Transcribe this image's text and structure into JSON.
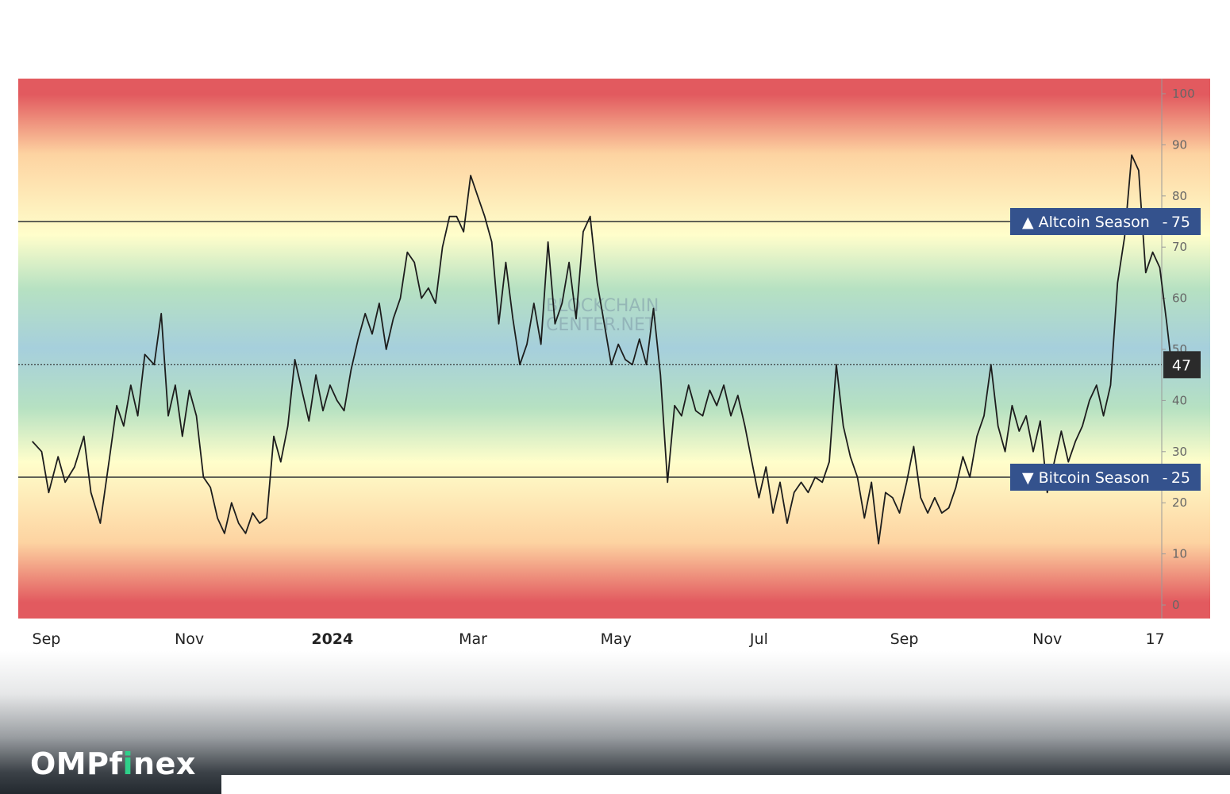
{
  "colors": {
    "red": "#e25a5f",
    "orange": "#fdd3a1",
    "yellow": "#fffecb",
    "green": "#b6e1c2",
    "blue": "#a6cfdc",
    "line": "#1d1d1d",
    "badge_blue": "#34528d",
    "badge_dark": "#2b2b2b"
  },
  "watermark": {
    "line1": "BLOCKCHAIN",
    "line2": "CENTER.NET"
  },
  "logo": {
    "part1": "OMP",
    "part2": "f",
    "part3": "i",
    "part4": "nex"
  },
  "chart_data": {
    "type": "line",
    "title": "",
    "xlabel": "",
    "ylabel": "",
    "ylim": [
      0,
      100
    ],
    "y_ticks": [
      "0",
      "10",
      "20",
      "30",
      "40",
      "50",
      "60",
      "70",
      "80",
      "90",
      "100"
    ],
    "x_ticks": [
      {
        "label": "Sep",
        "date": "2023-09-01",
        "bold": false
      },
      {
        "label": "Nov",
        "date": "2023-11-01",
        "bold": false
      },
      {
        "label": "2024",
        "date": "2024-01-01",
        "bold": true
      },
      {
        "label": "Mar",
        "date": "2024-03-01",
        "bold": false
      },
      {
        "label": "May",
        "date": "2024-05-01",
        "bold": false
      },
      {
        "label": "Jul",
        "date": "2024-07-01",
        "bold": false
      },
      {
        "label": "Sep",
        "date": "2024-09-01",
        "bold": false
      },
      {
        "label": "Nov",
        "date": "2024-11-01",
        "bold": false
      },
      {
        "label": "17",
        "date": "2024-12-17",
        "bold": false
      }
    ],
    "x_range": [
      "2023-08-20",
      "2024-12-30"
    ],
    "thresholds": [
      {
        "label": "▲ Altcoin Season",
        "value_label": "75",
        "value": 75
      },
      {
        "label": "▼ Bitcoin Season",
        "value_label": "25",
        "value": 25
      }
    ],
    "current": {
      "value": 47,
      "label": "47"
    },
    "grid": false,
    "series": [
      {
        "values": [
          [
            "2023-08-26",
            32
          ],
          [
            "2023-08-30",
            30
          ],
          [
            "2023-09-02",
            22
          ],
          [
            "2023-09-06",
            29
          ],
          [
            "2023-09-09",
            24
          ],
          [
            "2023-09-13",
            27
          ],
          [
            "2023-09-17",
            33
          ],
          [
            "2023-09-20",
            22
          ],
          [
            "2023-09-24",
            16
          ],
          [
            "2023-09-28",
            29
          ],
          [
            "2023-10-01",
            39
          ],
          [
            "2023-10-04",
            35
          ],
          [
            "2023-10-07",
            43
          ],
          [
            "2023-10-10",
            37
          ],
          [
            "2023-10-13",
            49
          ],
          [
            "2023-10-17",
            47
          ],
          [
            "2023-10-20",
            57
          ],
          [
            "2023-10-23",
            37
          ],
          [
            "2023-10-26",
            43
          ],
          [
            "2023-10-29",
            33
          ],
          [
            "2023-11-01",
            42
          ],
          [
            "2023-11-04",
            37
          ],
          [
            "2023-11-07",
            25
          ],
          [
            "2023-11-10",
            23
          ],
          [
            "2023-11-13",
            17
          ],
          [
            "2023-11-16",
            14
          ],
          [
            "2023-11-19",
            20
          ],
          [
            "2023-11-22",
            16
          ],
          [
            "2023-11-25",
            14
          ],
          [
            "2023-11-28",
            18
          ],
          [
            "2023-12-01",
            16
          ],
          [
            "2023-12-04",
            17
          ],
          [
            "2023-12-07",
            33
          ],
          [
            "2023-12-10",
            28
          ],
          [
            "2023-12-13",
            35
          ],
          [
            "2023-12-16",
            48
          ],
          [
            "2023-12-19",
            42
          ],
          [
            "2023-12-22",
            36
          ],
          [
            "2023-12-25",
            45
          ],
          [
            "2023-12-28",
            38
          ],
          [
            "2023-12-31",
            43
          ],
          [
            "2024-01-03",
            40
          ],
          [
            "2024-01-06",
            38
          ],
          [
            "2024-01-09",
            46
          ],
          [
            "2024-01-12",
            52
          ],
          [
            "2024-01-15",
            57
          ],
          [
            "2024-01-18",
            53
          ],
          [
            "2024-01-21",
            59
          ],
          [
            "2024-01-24",
            50
          ],
          [
            "2024-01-27",
            56
          ],
          [
            "2024-01-30",
            60
          ],
          [
            "2024-02-02",
            69
          ],
          [
            "2024-02-05",
            67
          ],
          [
            "2024-02-08",
            60
          ],
          [
            "2024-02-11",
            62
          ],
          [
            "2024-02-14",
            59
          ],
          [
            "2024-02-17",
            70
          ],
          [
            "2024-02-20",
            76
          ],
          [
            "2024-02-23",
            76
          ],
          [
            "2024-02-26",
            73
          ],
          [
            "2024-02-29",
            84
          ],
          [
            "2024-03-03",
            80
          ],
          [
            "2024-03-06",
            76
          ],
          [
            "2024-03-09",
            71
          ],
          [
            "2024-03-12",
            55
          ],
          [
            "2024-03-15",
            67
          ],
          [
            "2024-03-18",
            56
          ],
          [
            "2024-03-21",
            47
          ],
          [
            "2024-03-24",
            51
          ],
          [
            "2024-03-27",
            59
          ],
          [
            "2024-03-30",
            51
          ],
          [
            "2024-04-02",
            71
          ],
          [
            "2024-04-05",
            55
          ],
          [
            "2024-04-08",
            59
          ],
          [
            "2024-04-11",
            67
          ],
          [
            "2024-04-14",
            56
          ],
          [
            "2024-04-17",
            73
          ],
          [
            "2024-04-20",
            76
          ],
          [
            "2024-04-23",
            63
          ],
          [
            "2024-04-26",
            55
          ],
          [
            "2024-04-29",
            47
          ],
          [
            "2024-05-02",
            51
          ],
          [
            "2024-05-05",
            48
          ],
          [
            "2024-05-08",
            47
          ],
          [
            "2024-05-11",
            52
          ],
          [
            "2024-05-14",
            47
          ],
          [
            "2024-05-17",
            58
          ],
          [
            "2024-05-20",
            45
          ],
          [
            "2024-05-23",
            24
          ],
          [
            "2024-05-26",
            39
          ],
          [
            "2024-05-29",
            37
          ],
          [
            "2024-06-01",
            43
          ],
          [
            "2024-06-04",
            38
          ],
          [
            "2024-06-07",
            37
          ],
          [
            "2024-06-10",
            42
          ],
          [
            "2024-06-13",
            39
          ],
          [
            "2024-06-16",
            43
          ],
          [
            "2024-06-19",
            37
          ],
          [
            "2024-06-22",
            41
          ],
          [
            "2024-06-25",
            35
          ],
          [
            "2024-06-28",
            28
          ],
          [
            "2024-07-01",
            21
          ],
          [
            "2024-07-04",
            27
          ],
          [
            "2024-07-07",
            18
          ],
          [
            "2024-07-10",
            24
          ],
          [
            "2024-07-13",
            16
          ],
          [
            "2024-07-16",
            22
          ],
          [
            "2024-07-19",
            24
          ],
          [
            "2024-07-22",
            22
          ],
          [
            "2024-07-25",
            25
          ],
          [
            "2024-07-28",
            24
          ],
          [
            "2024-07-31",
            28
          ],
          [
            "2024-08-03",
            47
          ],
          [
            "2024-08-06",
            35
          ],
          [
            "2024-08-09",
            29
          ],
          [
            "2024-08-12",
            25
          ],
          [
            "2024-08-15",
            17
          ],
          [
            "2024-08-18",
            24
          ],
          [
            "2024-08-21",
            12
          ],
          [
            "2024-08-24",
            22
          ],
          [
            "2024-08-27",
            21
          ],
          [
            "2024-08-30",
            18
          ],
          [
            "2024-09-02",
            24
          ],
          [
            "2024-09-05",
            31
          ],
          [
            "2024-09-08",
            21
          ],
          [
            "2024-09-11",
            18
          ],
          [
            "2024-09-14",
            21
          ],
          [
            "2024-09-17",
            18
          ],
          [
            "2024-09-20",
            19
          ],
          [
            "2024-09-23",
            23
          ],
          [
            "2024-09-26",
            29
          ],
          [
            "2024-09-29",
            25
          ],
          [
            "2024-10-02",
            33
          ],
          [
            "2024-10-05",
            37
          ],
          [
            "2024-10-08",
            47
          ],
          [
            "2024-10-11",
            35
          ],
          [
            "2024-10-14",
            30
          ],
          [
            "2024-10-17",
            39
          ],
          [
            "2024-10-20",
            34
          ],
          [
            "2024-10-23",
            37
          ],
          [
            "2024-10-26",
            30
          ],
          [
            "2024-10-29",
            36
          ],
          [
            "2024-11-01",
            22
          ],
          [
            "2024-11-04",
            28
          ],
          [
            "2024-11-07",
            34
          ],
          [
            "2024-11-10",
            28
          ],
          [
            "2024-11-13",
            32
          ],
          [
            "2024-11-16",
            35
          ],
          [
            "2024-11-19",
            40
          ],
          [
            "2024-11-22",
            43
          ],
          [
            "2024-11-25",
            37
          ],
          [
            "2024-11-28",
            43
          ],
          [
            "2024-12-01",
            63
          ],
          [
            "2024-12-04",
            72
          ],
          [
            "2024-12-07",
            88
          ],
          [
            "2024-12-10",
            85
          ],
          [
            "2024-12-13",
            65
          ],
          [
            "2024-12-16",
            69
          ],
          [
            "2024-12-19",
            66
          ],
          [
            "2024-12-22",
            55
          ],
          [
            "2024-12-24",
            47
          ]
        ]
      }
    ]
  }
}
